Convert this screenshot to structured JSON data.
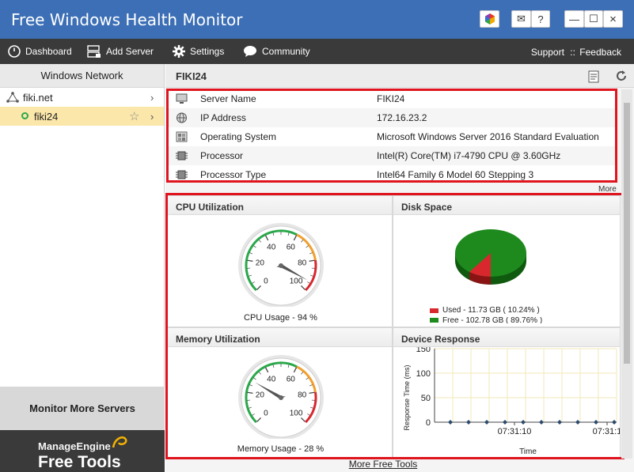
{
  "window": {
    "title": "Free Windows Health Monitor",
    "minimize": "—",
    "maximize": "☐",
    "close": "×",
    "mail": "✉",
    "help": "?"
  },
  "menu": {
    "dashboard": "Dashboard",
    "add_server": "Add Server",
    "settings": "Settings",
    "community": "Community",
    "support": "Support",
    "sep": "::",
    "feedback": "Feedback"
  },
  "sidebar": {
    "title": "Windows Network",
    "domain": "fiki.net",
    "server": "fiki24",
    "monitor_more": "Monitor More Servers",
    "brand_top": "ManageEngine",
    "brand_bottom": "Free Tools"
  },
  "main": {
    "title": "FIKI24",
    "more": "More",
    "more_free_tools": "More Free Tools"
  },
  "info": [
    {
      "label": "Server Name",
      "value": "FIKI24",
      "icon": "monitor-icon"
    },
    {
      "label": "IP Address",
      "value": "172.16.23.2",
      "icon": "globe-icon"
    },
    {
      "label": "Operating System",
      "value": "Microsoft Windows Server 2016 Standard Evaluation",
      "icon": "windows-icon"
    },
    {
      "label": "Processor",
      "value": "Intel(R) Core(TM) i7-4790 CPU @ 3.60GHz",
      "icon": "chip-icon"
    },
    {
      "label": "Processor Type",
      "value": "Intel64 Family 6 Model 60 Stepping 3",
      "icon": "chip-icon"
    }
  ],
  "cpu": {
    "title": "CPU Utilization",
    "caption": "CPU Usage - 94 %",
    "value": 94
  },
  "memory": {
    "title": "Memory Utilization",
    "caption": "Memory Usage - 28 %",
    "value": 28
  },
  "gauge_ticks": [
    "0",
    "20",
    "40",
    "60",
    "80",
    "100"
  ],
  "disk": {
    "title": "Disk Space",
    "used": "Used - 11.73 GB ( 10.24% )",
    "free": "Free - 102.78 GB ( 89.76% )",
    "used_pct": 10.24,
    "used_color": "#d9272e",
    "free_color": "#1e8a1e"
  },
  "response": {
    "title": "Device Response",
    "ylabel": "Response Time (ms)",
    "xlabel": "Time",
    "yticks": [
      "150",
      "100",
      "50",
      "0"
    ],
    "xticks": [
      "07:31:10",
      "07:31:1"
    ]
  },
  "chart_data": [
    {
      "type": "gauge",
      "title": "CPU Utilization",
      "value": 94,
      "range": [
        0,
        100
      ]
    },
    {
      "type": "gauge",
      "title": "Memory Utilization",
      "value": 28,
      "range": [
        0,
        100
      ]
    },
    {
      "type": "pie",
      "title": "Disk Space",
      "categories": [
        "Used",
        "Free"
      ],
      "values": [
        10.24,
        89.76
      ]
    },
    {
      "type": "line",
      "title": "Device Response",
      "ylabel": "Response Time (ms)",
      "xlabel": "Time",
      "ylim": [
        0,
        150
      ],
      "series": [
        {
          "values": [
            0,
            0,
            0,
            0,
            0,
            0,
            0,
            0,
            0,
            0
          ]
        }
      ]
    }
  ]
}
